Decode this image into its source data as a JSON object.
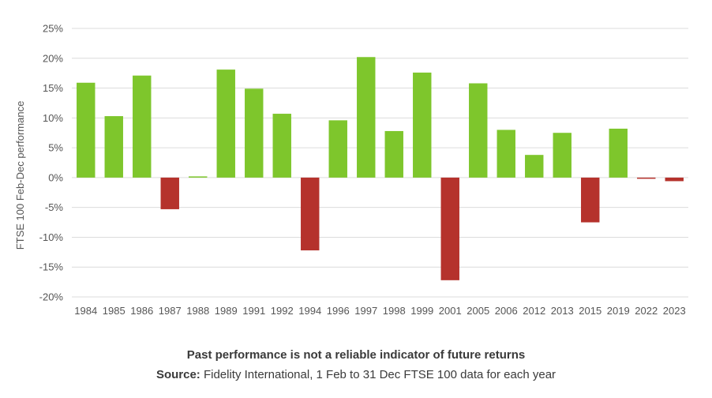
{
  "chart_data": {
    "type": "bar",
    "ylabel": "FTSE 100 Feb-Dec performance",
    "xlabel": "",
    "ylim": [
      -20,
      25
    ],
    "yticks": [
      25,
      20,
      15,
      10,
      5,
      0,
      -5,
      -10,
      -15,
      -20
    ],
    "ytick_labels": [
      "25%",
      "20%",
      "15%",
      "10%",
      "5%",
      "0%",
      "-5%",
      "-10%",
      "-15%",
      "-20%"
    ],
    "grid": true,
    "categories": [
      "1984",
      "1985",
      "1986",
      "1987",
      "1988",
      "1989",
      "1991",
      "1992",
      "1994",
      "1996",
      "1997",
      "1998",
      "1999",
      "2001",
      "2005",
      "2006",
      "2012",
      "2013",
      "2015",
      "2019",
      "2022",
      "2023"
    ],
    "values": [
      15.9,
      10.3,
      17.1,
      -5.3,
      0.2,
      18.1,
      14.9,
      10.7,
      -12.2,
      9.6,
      20.2,
      7.8,
      17.6,
      -17.2,
      15.8,
      8.0,
      3.8,
      7.5,
      -7.5,
      8.2,
      -0.2,
      -0.6
    ],
    "colors": {
      "positive": "#7ec62c",
      "negative": "#b5322c",
      "grid": "#dcdcdc",
      "axis_text": "#555555"
    }
  },
  "caption": {
    "disclaimer": "Past performance is not a reliable indicator of future returns",
    "source_label": "Source:",
    "source_text": " Fidelity International, 1 Feb to 31 Dec FTSE 100 data for each year"
  }
}
